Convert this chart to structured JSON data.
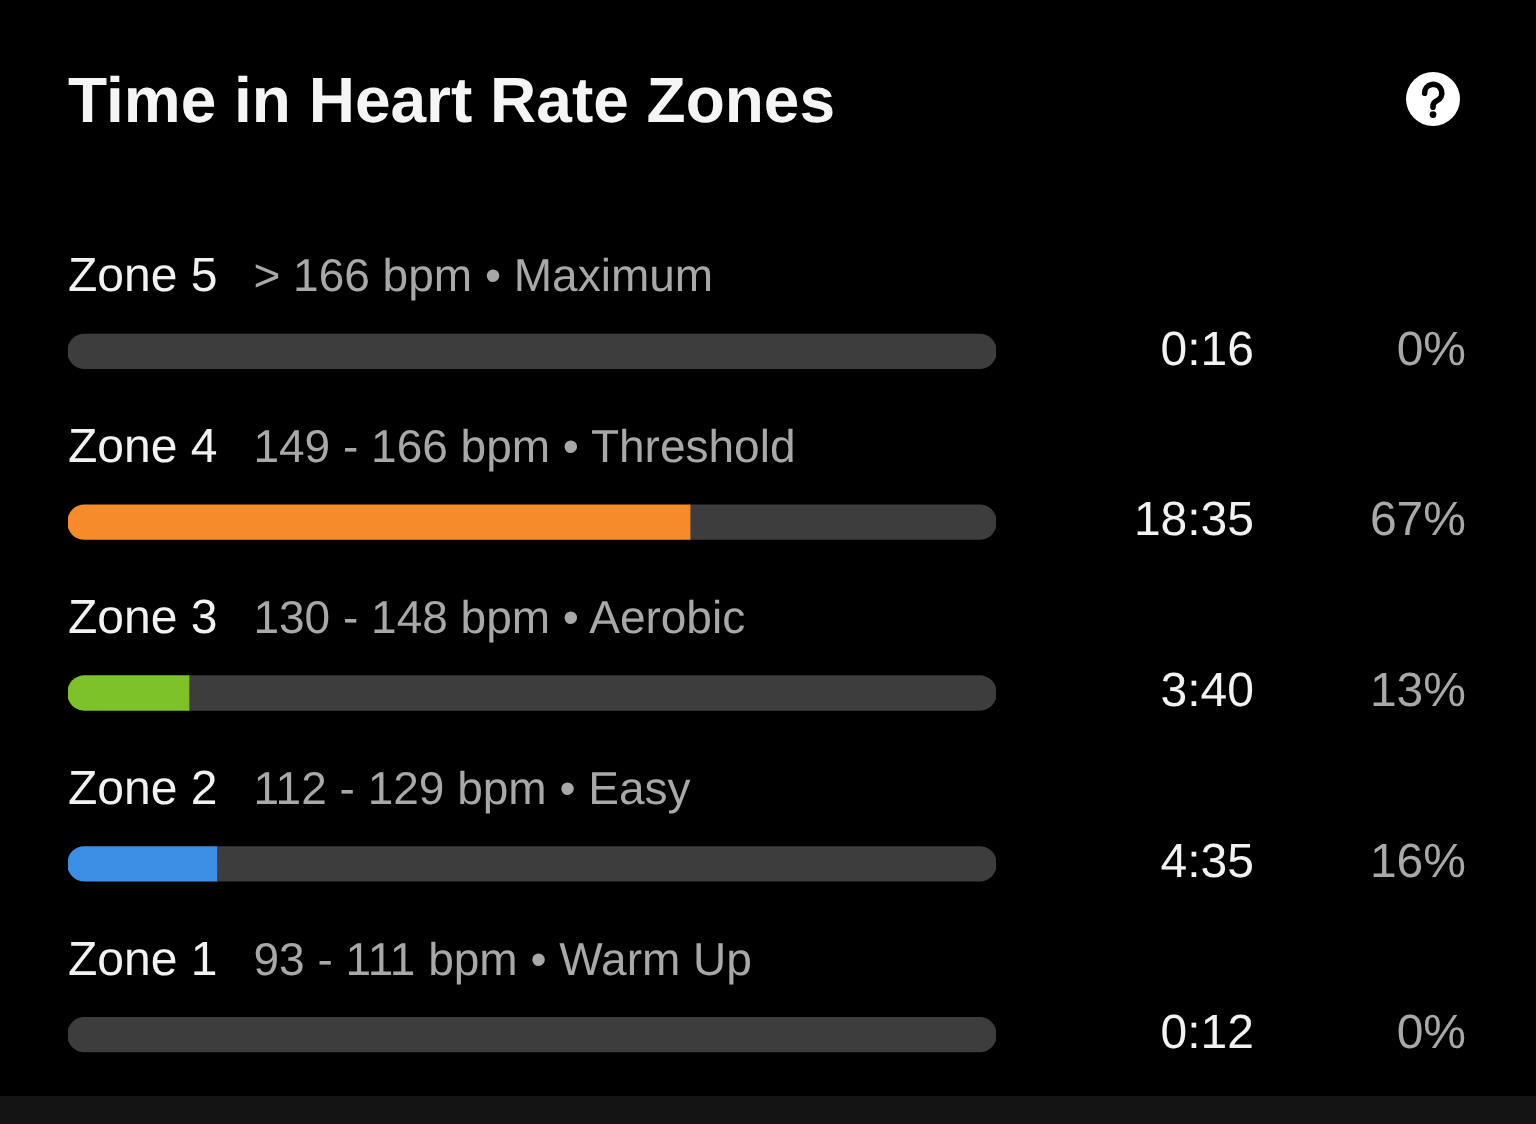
{
  "chart_data": {
    "type": "bar",
    "orientation": "horizontal",
    "stacked": true,
    "title": "Time in Heart Rate Zones",
    "categories": [
      "Zone 5",
      "Zone 4",
      "Zone 3",
      "Zone 2",
      "Zone 1"
    ],
    "series": [
      {
        "colors": [
          null,
          "#f68b2c",
          "#7dc229",
          "#3c8fe5",
          null
        ],
        "values": [
          0,
          67,
          13,
          16,
          0
        ],
        "value_labels": [
          "0%",
          "67%",
          "13%",
          "16%",
          "0%"
        ]
      },
      {
        "color": "#3d3d3d",
        "values": [
          100,
          33,
          87,
          84,
          100
        ]
      }
    ],
    "xlim": [
      0,
      100
    ],
    "tick_labels": "y",
    "annotations": [
      "> 166 bpm • Maximum",
      "149 - 166 bpm • Threshold",
      "130 - 148 bpm • Aerobic",
      "112 - 129 bpm • Easy",
      "93 - 111 bpm • Warm Up",
      "0:16",
      "18:35",
      "3:40",
      "4:35",
      "0:12"
    ]
  }
}
